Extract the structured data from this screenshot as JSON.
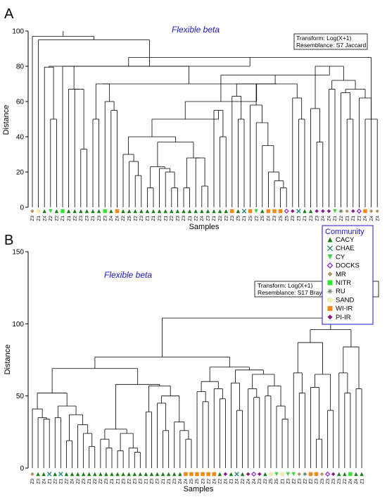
{
  "legend": {
    "title": "Community",
    "items": [
      {
        "label": "CACY",
        "color": "#1a7a1a",
        "shape": "triangle-up"
      },
      {
        "label": "CHAE",
        "color": "#1f8a6a",
        "shape": "x"
      },
      {
        "label": "CY",
        "color": "#3ad63a",
        "shape": "triangle-down"
      },
      {
        "label": "DOCKS",
        "color": "#8b1fd6",
        "shape": "diamond-open"
      },
      {
        "label": "MR",
        "color": "#b0956a",
        "shape": "diamond"
      },
      {
        "label": "NITR",
        "color": "#33e633",
        "shape": "square"
      },
      {
        "label": "RU",
        "color": "#6a8a6a",
        "shape": "asterisk"
      },
      {
        "label": "SAND",
        "color": "#f0f0b0",
        "shape": "circle"
      },
      {
        "label": "WI-IR",
        "color": "#f08a1a",
        "shape": "square"
      },
      {
        "label": "PI-IR",
        "color": "#8a1a8a",
        "shape": "diamond"
      }
    ]
  },
  "chart_data": [
    {
      "type": "dendrogram",
      "panel": "A",
      "title": "Flexible beta",
      "info_lines": [
        "Transform: Log(X+1)",
        "Resemblance: S7 Jaccard"
      ],
      "xlabel": "Samples",
      "ylabel": "Distance",
      "ylim": [
        0,
        100
      ],
      "yticks": [
        0,
        20,
        40,
        60,
        80,
        100
      ],
      "leaves": [
        {
          "label": "Z3",
          "group": "MR"
        },
        {
          "label": "Z1",
          "group": "SAND"
        },
        {
          "label": "Z4",
          "group": "CACY"
        },
        {
          "label": "Z2",
          "group": "CY"
        },
        {
          "label": "Z2",
          "group": "CACY"
        },
        {
          "label": "Z1",
          "group": "NITR"
        },
        {
          "label": "Z1",
          "group": "CACY"
        },
        {
          "label": "Z2",
          "group": "CACY"
        },
        {
          "label": "Z3",
          "group": "CACY"
        },
        {
          "label": "Z3",
          "group": "CACY"
        },
        {
          "label": "Z1",
          "group": "CACY"
        },
        {
          "label": "Z3",
          "group": "CACY"
        },
        {
          "label": "Z3",
          "group": "NITR"
        },
        {
          "label": "Z4",
          "group": "CACY"
        },
        {
          "label": "Z4",
          "group": "WI-IR"
        },
        {
          "label": "Z2",
          "group": "CACY"
        },
        {
          "label": "Z5",
          "group": "CACY"
        },
        {
          "label": "Z2",
          "group": "CACY"
        },
        {
          "label": "Z3",
          "group": "CACY"
        },
        {
          "label": "Z1",
          "group": "CACY"
        },
        {
          "label": "Z1",
          "group": "CACY"
        },
        {
          "label": "Z3",
          "group": "CACY"
        },
        {
          "label": "Z1",
          "group": "CACY"
        },
        {
          "label": "Z2",
          "group": "CACY"
        },
        {
          "label": "Z3",
          "group": "CACY"
        },
        {
          "label": "Z3",
          "group": "CACY"
        },
        {
          "label": "Z1",
          "group": "CACY"
        },
        {
          "label": "Z2",
          "group": "CACY"
        },
        {
          "label": "Z4",
          "group": "CACY"
        },
        {
          "label": "Z3",
          "group": "CACY"
        },
        {
          "label": "Z1",
          "group": "CACY"
        },
        {
          "label": "Z2",
          "group": "CACY"
        },
        {
          "label": "Z2",
          "group": "CACY"
        },
        {
          "label": "Z3",
          "group": "WI-IR"
        },
        {
          "label": "Z5",
          "group": "CACY"
        },
        {
          "label": "Z1",
          "group": "CHAE"
        },
        {
          "label": "Z5",
          "group": "WI-IR"
        },
        {
          "label": "Z2",
          "group": "CY"
        },
        {
          "label": "Z5",
          "group": "CACY"
        },
        {
          "label": "Z4",
          "group": "WI-IR"
        },
        {
          "label": "Z3",
          "group": "WI-IR"
        },
        {
          "label": "Z5",
          "group": "WI-IR"
        },
        {
          "label": "Z5",
          "group": "DOCKS"
        },
        {
          "label": "Z3",
          "group": "PI-IR"
        },
        {
          "label": "Z1",
          "group": "CHAE"
        },
        {
          "label": "Z1",
          "group": "CACY"
        },
        {
          "label": "Z3",
          "group": "CACY"
        },
        {
          "label": "Z3",
          "group": "PI-IR"
        },
        {
          "label": "Z4",
          "group": "PI-IR"
        },
        {
          "label": "Z4",
          "group": "PI-IR"
        },
        {
          "label": "Z1",
          "group": "CY"
        },
        {
          "label": "Z2",
          "group": "RU"
        },
        {
          "label": "Z1",
          "group": "MR"
        },
        {
          "label": "Z1",
          "group": "PI-IR"
        },
        {
          "label": "Z1",
          "group": "DOCKS"
        },
        {
          "label": "Z4",
          "group": "WI-IR"
        },
        {
          "label": "Z4",
          "group": "MR"
        },
        {
          "label": "Z4",
          "group": "MR"
        }
      ]
    },
    {
      "type": "dendrogram",
      "panel": "B",
      "title": "Flexible beta",
      "info_lines": [
        "Transform: Log(X+1)",
        "Resemblance: S17 Bray-Curtis similarity"
      ],
      "xlabel": "Samples",
      "ylabel": "Distance",
      "ylim": [
        0,
        150
      ],
      "yticks": [
        0,
        50,
        100,
        150
      ],
      "leaves": [
        {
          "label": "Z3",
          "group": "MR"
        },
        {
          "label": "Z3",
          "group": "CACY"
        },
        {
          "label": "Z4",
          "group": "CACY"
        },
        {
          "label": "Z1",
          "group": "CHAE"
        },
        {
          "label": "Z2",
          "group": "CACY"
        },
        {
          "label": "Z1",
          "group": "CHAE"
        },
        {
          "label": "Z2",
          "group": "CACY"
        },
        {
          "label": "Z4",
          "group": "CACY"
        },
        {
          "label": "Z2",
          "group": "CACY"
        },
        {
          "label": "Z3",
          "group": "CACY"
        },
        {
          "label": "Z1",
          "group": "CACY"
        },
        {
          "label": "Z2",
          "group": "CACY"
        },
        {
          "label": "Z2",
          "group": "CACY"
        },
        {
          "label": "Z3",
          "group": "CACY"
        },
        {
          "label": "Z1",
          "group": "CACY"
        },
        {
          "label": "Z1",
          "group": "CACY"
        },
        {
          "label": "Z3",
          "group": "CACY"
        },
        {
          "label": "Z2",
          "group": "CACY"
        },
        {
          "label": "Z3",
          "group": "CACY"
        },
        {
          "label": "Z3",
          "group": "CACY"
        },
        {
          "label": "Z1",
          "group": "CACY"
        },
        {
          "label": "Z3",
          "group": "CACY"
        },
        {
          "label": "Z3",
          "group": "CACY"
        },
        {
          "label": "Z1",
          "group": "CACY"
        },
        {
          "label": "Z1",
          "group": "CACY"
        },
        {
          "label": "Z3",
          "group": "CACY"
        },
        {
          "label": "Z4",
          "group": "CACY"
        },
        {
          "label": "Z4",
          "group": "WI-IR"
        },
        {
          "label": "Z5",
          "group": "WI-IR"
        },
        {
          "label": "Z5",
          "group": "WI-IR"
        },
        {
          "label": "Z3",
          "group": "WI-IR"
        },
        {
          "label": "Z2",
          "group": "WI-IR"
        },
        {
          "label": "Z4",
          "group": "WI-IR"
        },
        {
          "label": "Z2",
          "group": "CACY"
        },
        {
          "label": "Z4",
          "group": "PI-IR"
        },
        {
          "label": "Z1",
          "group": "CACY"
        },
        {
          "label": "Z4",
          "group": "CHAE"
        },
        {
          "label": "Z2",
          "group": "CACY"
        },
        {
          "label": "Z4",
          "group": "PI-IR"
        },
        {
          "label": "Z4",
          "group": "DOCKS"
        },
        {
          "label": "Z3",
          "group": "PI-IR"
        },
        {
          "label": "Z2",
          "group": "CACY"
        },
        {
          "label": "Z5",
          "group": "SAND"
        },
        {
          "label": "Z5",
          "group": "CY"
        },
        {
          "label": "Z1",
          "group": "SAND"
        },
        {
          "label": "Z3",
          "group": "CY"
        },
        {
          "label": "Z2",
          "group": "CY"
        },
        {
          "label": "Z3",
          "group": "MR"
        },
        {
          "label": "Z2",
          "group": "RU"
        },
        {
          "label": "Z2",
          "group": "WI-IR"
        },
        {
          "label": "Z3",
          "group": "WI-IR"
        },
        {
          "label": "Z3",
          "group": "MR"
        },
        {
          "label": "Z3",
          "group": "DOCKS"
        },
        {
          "label": "Z3",
          "group": "PI-IR"
        },
        {
          "label": "Z3",
          "group": "CACY"
        },
        {
          "label": "Z2",
          "group": "CACY"
        },
        {
          "label": "Z4",
          "group": "NITR"
        },
        {
          "label": "Z4",
          "group": "CACY"
        },
        {
          "label": "Z1",
          "group": "CACY"
        }
      ]
    }
  ]
}
